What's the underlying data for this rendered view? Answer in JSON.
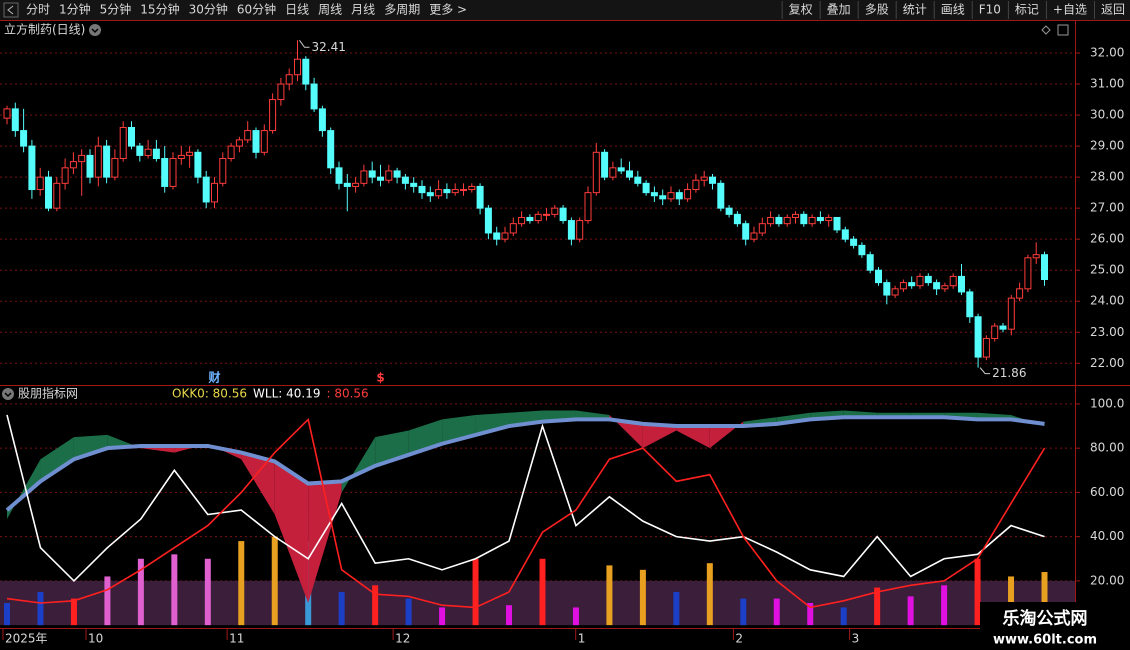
{
  "toolbar": {
    "left": [
      "分时",
      "1分钟",
      "5分钟",
      "15分钟",
      "30分钟",
      "60分钟",
      "日线",
      "周线",
      "月线",
      "多周期",
      "更多 >"
    ],
    "right": [
      "复权",
      "叠加",
      "多股",
      "统计",
      "画线",
      "F10",
      "标记",
      "+自选",
      "返回"
    ]
  },
  "watermark": {
    "title": "乐淘公式网",
    "url": "www.60lt.com"
  },
  "chart_data": {
    "type": "candlestick",
    "title": "立方制药(日线)",
    "up_color": "#ff3c3c",
    "down_color": "#54fcfc",
    "ylim": [
      21.3,
      33.0
    ],
    "yticks": [
      {
        "value": 22,
        "label": "22.00"
      },
      {
        "value": 23,
        "label": "23.00"
      },
      {
        "value": 24,
        "label": "24.00"
      },
      {
        "value": 25,
        "label": "25.00"
      },
      {
        "value": 26,
        "label": "26.00"
      },
      {
        "value": 27,
        "label": "27.00"
      },
      {
        "value": 28,
        "label": "28.00"
      },
      {
        "value": 29,
        "label": "29.00"
      },
      {
        "value": 30,
        "label": "30.00"
      },
      {
        "value": 31,
        "label": "31.00"
      },
      {
        "value": 32,
        "label": "32.00"
      }
    ],
    "grid": true,
    "categories": [
      "2025年",
      null,
      null,
      null,
      null,
      null,
      null,
      null,
      null,
      null,
      "10",
      null,
      null,
      null,
      null,
      null,
      null,
      null,
      null,
      null,
      null,
      null,
      null,
      null,
      null,
      null,
      null,
      "11",
      null,
      null,
      null,
      null,
      null,
      null,
      null,
      null,
      null,
      null,
      null,
      null,
      null,
      null,
      null,
      null,
      null,
      null,
      null,
      "12",
      null,
      null,
      null,
      null,
      null,
      null,
      null,
      null,
      null,
      null,
      null,
      null,
      null,
      null,
      null,
      null,
      null,
      null,
      null,
      null,
      null,
      "1",
      null,
      null,
      null,
      null,
      null,
      null,
      null,
      null,
      null,
      null,
      null,
      null,
      null,
      null,
      null,
      null,
      null,
      null,
      "2",
      null,
      null,
      null,
      null,
      null,
      null,
      null,
      null,
      null,
      null,
      null,
      null,
      null,
      "3",
      null,
      null,
      null,
      null,
      null,
      null,
      null,
      null,
      null,
      null,
      null,
      null,
      null,
      null,
      null,
      null,
      null,
      null,
      null,
      null,
      null,
      null,
      null
    ],
    "candles": [
      [
        29.9,
        30.3,
        29.7,
        30.2
      ],
      [
        30.2,
        30.4,
        29.3,
        29.5
      ],
      [
        29.5,
        30.2,
        28.8,
        29.0
      ],
      [
        29.0,
        29.2,
        27.3,
        27.6
      ],
      [
        27.6,
        28.3,
        27.4,
        28.0
      ],
      [
        28.0,
        28.2,
        26.9,
        27.0
      ],
      [
        27.0,
        28.0,
        26.9,
        27.8
      ],
      [
        27.8,
        28.6,
        27.6,
        28.3
      ],
      [
        28.3,
        28.8,
        28.1,
        28.5
      ],
      [
        28.5,
        28.9,
        27.4,
        28.7
      ],
      [
        28.7,
        28.9,
        27.8,
        28.0
      ],
      [
        28.0,
        29.3,
        27.7,
        29.0
      ],
      [
        29.0,
        29.2,
        27.8,
        28.0
      ],
      [
        28.0,
        28.9,
        27.9,
        28.6
      ],
      [
        28.6,
        29.8,
        28.5,
        29.6
      ],
      [
        29.6,
        29.8,
        28.9,
        29.0
      ],
      [
        29.0,
        29.1,
        28.5,
        28.7
      ],
      [
        28.7,
        29.2,
        28.6,
        28.9
      ],
      [
        28.9,
        29.2,
        28.5,
        28.6
      ],
      [
        28.6,
        29.0,
        27.5,
        27.7
      ],
      [
        27.7,
        28.8,
        27.6,
        28.6
      ],
      [
        28.6,
        29.0,
        28.4,
        28.7
      ],
      [
        28.7,
        29.0,
        28.3,
        28.8
      ],
      [
        28.8,
        28.9,
        27.8,
        28.0
      ],
      [
        28.0,
        28.2,
        27.0,
        27.2
      ],
      [
        27.2,
        28.0,
        27.0,
        27.8
      ],
      [
        27.8,
        28.8,
        27.7,
        28.6
      ],
      [
        28.6,
        29.1,
        28.5,
        29.0
      ],
      [
        29.0,
        29.3,
        28.8,
        29.2
      ],
      [
        29.2,
        29.8,
        29.1,
        29.5
      ],
      [
        29.5,
        29.6,
        28.6,
        28.8
      ],
      [
        28.8,
        29.7,
        28.7,
        29.5
      ],
      [
        29.5,
        30.7,
        29.4,
        30.5
      ],
      [
        30.5,
        31.2,
        30.3,
        31.0
      ],
      [
        31.0,
        31.5,
        30.8,
        31.3
      ],
      [
        31.3,
        32.41,
        31.1,
        31.8
      ],
      [
        31.8,
        31.9,
        30.8,
        31.0
      ],
      [
        31.0,
        31.2,
        30.1,
        30.2
      ],
      [
        30.2,
        30.3,
        29.3,
        29.5
      ],
      [
        29.5,
        29.6,
        28.1,
        28.3
      ],
      [
        28.3,
        28.5,
        27.6,
        27.8
      ],
      [
        27.8,
        28.1,
        26.9,
        27.7
      ],
      [
        27.7,
        28.0,
        27.5,
        27.8
      ],
      [
        27.8,
        28.4,
        27.7,
        28.2
      ],
      [
        28.2,
        28.5,
        27.8,
        28.0
      ],
      [
        28.0,
        28.4,
        27.7,
        27.9
      ],
      [
        27.9,
        28.4,
        27.8,
        28.2
      ],
      [
        28.2,
        28.3,
        27.8,
        28.0
      ],
      [
        28.0,
        28.1,
        27.6,
        27.8
      ],
      [
        27.8,
        28.0,
        27.5,
        27.7
      ],
      [
        27.7,
        27.9,
        27.3,
        27.5
      ],
      [
        27.5,
        27.7,
        27.2,
        27.4
      ],
      [
        27.4,
        27.9,
        27.3,
        27.6
      ],
      [
        27.6,
        27.8,
        27.3,
        27.5
      ],
      [
        27.5,
        27.8,
        27.4,
        27.6
      ],
      [
        27.6,
        27.8,
        27.4,
        27.6
      ],
      [
        27.6,
        27.8,
        27.5,
        27.7
      ],
      [
        27.7,
        27.8,
        26.8,
        27.0
      ],
      [
        27.0,
        27.1,
        26.0,
        26.2
      ],
      [
        26.2,
        26.4,
        25.8,
        26.0
      ],
      [
        26.0,
        26.4,
        25.9,
        26.2
      ],
      [
        26.2,
        26.7,
        26.1,
        26.5
      ],
      [
        26.5,
        26.9,
        26.4,
        26.7
      ],
      [
        26.7,
        26.8,
        26.5,
        26.6
      ],
      [
        26.6,
        26.9,
        26.5,
        26.8
      ],
      [
        26.8,
        27.0,
        26.6,
        26.8
      ],
      [
        26.8,
        27.1,
        26.7,
        27.0
      ],
      [
        27.0,
        27.1,
        26.5,
        26.6
      ],
      [
        26.6,
        26.7,
        25.8,
        26.0
      ],
      [
        26.0,
        26.7,
        25.9,
        26.6
      ],
      [
        26.6,
        27.7,
        26.5,
        27.5
      ],
      [
        27.5,
        29.1,
        27.4,
        28.8
      ],
      [
        28.8,
        28.9,
        27.9,
        28.0
      ],
      [
        28.0,
        28.5,
        27.9,
        28.3
      ],
      [
        28.3,
        28.6,
        28.1,
        28.2
      ],
      [
        28.2,
        28.5,
        27.9,
        28.0
      ],
      [
        28.0,
        28.2,
        27.7,
        27.8
      ],
      [
        27.8,
        27.9,
        27.4,
        27.5
      ],
      [
        27.5,
        27.7,
        27.2,
        27.4
      ],
      [
        27.4,
        27.6,
        27.1,
        27.3
      ],
      [
        27.3,
        27.7,
        27.2,
        27.5
      ],
      [
        27.5,
        27.6,
        27.1,
        27.3
      ],
      [
        27.3,
        27.8,
        27.2,
        27.6
      ],
      [
        27.6,
        28.1,
        27.5,
        27.9
      ],
      [
        27.9,
        28.2,
        27.7,
        28.0
      ],
      [
        28.0,
        28.1,
        27.6,
        27.8
      ],
      [
        27.8,
        27.9,
        26.9,
        27.0
      ],
      [
        27.0,
        27.1,
        26.7,
        26.8
      ],
      [
        26.8,
        26.9,
        26.4,
        26.5
      ],
      [
        26.5,
        26.6,
        25.8,
        26.0
      ],
      [
        26.0,
        26.4,
        25.9,
        26.2
      ],
      [
        26.2,
        26.7,
        26.1,
        26.5
      ],
      [
        26.5,
        26.9,
        26.4,
        26.7
      ],
      [
        26.7,
        26.8,
        26.4,
        26.5
      ],
      [
        26.5,
        26.8,
        26.4,
        26.7
      ],
      [
        26.7,
        26.9,
        26.5,
        26.8
      ],
      [
        26.8,
        26.9,
        26.4,
        26.5
      ],
      [
        26.5,
        26.8,
        26.4,
        26.7
      ],
      [
        26.7,
        26.9,
        26.5,
        26.6
      ],
      [
        26.6,
        26.8,
        26.4,
        26.7
      ],
      [
        26.7,
        26.7,
        26.2,
        26.3
      ],
      [
        26.3,
        26.4,
        25.9,
        26.0
      ],
      [
        26.0,
        26.1,
        25.7,
        25.8
      ],
      [
        25.8,
        25.9,
        25.4,
        25.5
      ],
      [
        25.5,
        25.6,
        24.9,
        25.0
      ],
      [
        25.0,
        25.1,
        24.5,
        24.6
      ],
      [
        24.6,
        24.7,
        23.9,
        24.2
      ],
      [
        24.2,
        24.5,
        24.1,
        24.4
      ],
      [
        24.4,
        24.7,
        24.3,
        24.6
      ],
      [
        24.6,
        24.8,
        24.4,
        24.5
      ],
      [
        24.5,
        24.9,
        24.4,
        24.8
      ],
      [
        24.8,
        24.9,
        24.5,
        24.6
      ],
      [
        24.6,
        24.7,
        24.2,
        24.4
      ],
      [
        24.4,
        24.6,
        24.3,
        24.5
      ],
      [
        24.5,
        24.9,
        24.4,
        24.8
      ],
      [
        24.8,
        25.2,
        24.2,
        24.3
      ],
      [
        24.3,
        24.4,
        23.3,
        23.5
      ],
      [
        23.5,
        23.6,
        21.86,
        22.2
      ],
      [
        22.2,
        22.9,
        22.1,
        22.8
      ],
      [
        22.8,
        23.3,
        22.7,
        23.2
      ],
      [
        23.2,
        23.3,
        23.0,
        23.1
      ],
      [
        23.1,
        24.2,
        22.9,
        24.1
      ],
      [
        24.1,
        24.6,
        24.0,
        24.4
      ],
      [
        24.4,
        25.5,
        24.3,
        25.4
      ],
      [
        25.4,
        25.9,
        25.2,
        25.5
      ],
      [
        25.5,
        25.6,
        24.5,
        24.7
      ]
    ],
    "annotations": [
      {
        "value": 32.41,
        "index": 35
      },
      {
        "value": 21.86,
        "index": 117
      }
    ],
    "markers": [
      {
        "text": "财",
        "index": 25,
        "color": "#6fb4ff"
      },
      {
        "text": "$",
        "index": 45,
        "color": "#ff3c3c"
      }
    ],
    "indicator": {
      "title": "股朋指标网",
      "legend": [
        {
          "text": "OKK0: 80.56",
          "color": "#e8d84a"
        },
        {
          "text": "WLL: 40.19",
          "color": "#ffffff"
        },
        {
          "text": ": 80.56",
          "color": "#ff3c3c"
        }
      ],
      "ylim": [
        -1.3,
        107.2
      ],
      "yticks": [
        {
          "value": 20,
          "label": "20.00"
        },
        {
          "value": 40,
          "label": "40.00"
        },
        {
          "value": 60,
          "label": "60.00"
        },
        {
          "value": 80,
          "label": "80.00"
        },
        {
          "value": 100,
          "label": "100.0"
        }
      ],
      "base_band": 20,
      "band": [
        48,
        75,
        85,
        86,
        80,
        78,
        82,
        75,
        50,
        10,
        60,
        85,
        88,
        93,
        95,
        96,
        97,
        97,
        95,
        80,
        88,
        80,
        92,
        94,
        96,
        97,
        96,
        96,
        96,
        96,
        95,
        90
      ],
      "band_up_color": "#1b6e48",
      "band_down_color": "#c4203c",
      "series": [
        {
          "name": "blue",
          "color": "#6f8fd0",
          "width": 4,
          "values": [
            52,
            65,
            75,
            80,
            81,
            81,
            81,
            78,
            74,
            64,
            65,
            72,
            77,
            82,
            86,
            90,
            92,
            93,
            93,
            91,
            90,
            90,
            90,
            91,
            93,
            94,
            94,
            94,
            94,
            93,
            93,
            91
          ]
        },
        {
          "name": "white",
          "color": "#ffffff",
          "width": 1.6,
          "values": [
            95,
            35,
            20,
            35,
            48,
            70,
            50,
            52,
            40,
            30,
            55,
            28,
            30,
            25,
            30,
            38,
            90,
            45,
            58,
            47,
            40,
            38,
            40,
            33,
            25,
            22,
            40,
            22,
            30,
            32,
            45,
            40
          ]
        },
        {
          "name": "red",
          "color": "#ff2020",
          "width": 1.6,
          "values": [
            12,
            10,
            11,
            16,
            25,
            35,
            45,
            60,
            78,
            93,
            25,
            14,
            13,
            9,
            8,
            15,
            42,
            52,
            75,
            80,
            65,
            68,
            40,
            20,
            8,
            11,
            15,
            18,
            20,
            30,
            55,
            80
          ]
        }
      ],
      "columns": [
        {
          "value": 10,
          "color": "#1c3fc8"
        },
        {
          "value": 15,
          "color": "#1c3fc8"
        },
        {
          "value": 12,
          "color": "#ff2020"
        },
        {
          "value": 22,
          "color": "#e060d0"
        },
        {
          "value": 30,
          "color": "#e060d0"
        },
        {
          "value": 32,
          "color": "#e060d0"
        },
        {
          "value": 30,
          "color": "#e060d0"
        },
        {
          "value": 38,
          "color": "#e8a020"
        },
        {
          "value": 40,
          "color": "#e8a020"
        },
        {
          "value": 38,
          "color": "#3a9ad8"
        },
        {
          "value": 15,
          "color": "#1c3fc8"
        },
        {
          "value": 18,
          "color": "#ff2020"
        },
        {
          "value": 12,
          "color": "#1c3fc8"
        },
        {
          "value": 8,
          "color": "#e010e0"
        },
        {
          "value": 30,
          "color": "#ff2020"
        },
        {
          "value": 9,
          "color": "#e010e0"
        },
        {
          "value": 30,
          "color": "#ff2020"
        },
        {
          "value": 8,
          "color": "#e010e0"
        },
        {
          "value": 27,
          "color": "#e8a020"
        },
        {
          "value": 25,
          "color": "#e8a020"
        },
        {
          "value": 15,
          "color": "#1c3fc8"
        },
        {
          "value": 28,
          "color": "#e8a020"
        },
        {
          "value": 12,
          "color": "#1c3fc8"
        },
        {
          "value": 12,
          "color": "#e010e0"
        },
        {
          "value": 10,
          "color": "#e010e0"
        },
        {
          "value": 8,
          "color": "#1c3fc8"
        },
        {
          "value": 17,
          "color": "#ff2020"
        },
        {
          "value": 13,
          "color": "#e010e0"
        },
        {
          "value": 18,
          "color": "#e010e0"
        },
        {
          "value": 30,
          "color": "#ff2020"
        },
        {
          "value": 22,
          "color": "#e8a020"
        },
        {
          "value": 24,
          "color": "#e8a020"
        }
      ]
    }
  }
}
